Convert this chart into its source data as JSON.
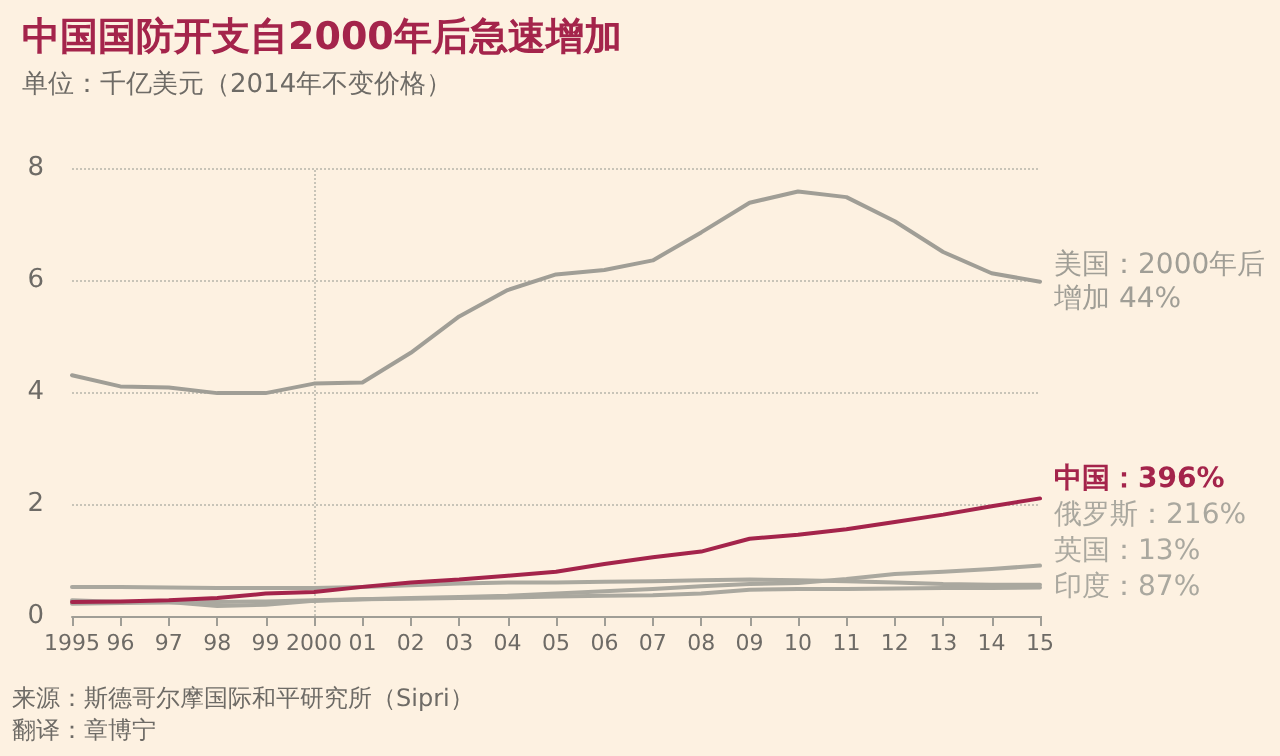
{
  "chart_data": {
    "type": "line",
    "title": "中国国防开支自2000年后急速增加",
    "subtitle": "单位：千亿美元（2014年不变价格）",
    "categories": [
      "1995",
      "96",
      "97",
      "98",
      "99",
      "2000",
      "01",
      "02",
      "03",
      "04",
      "05",
      "06",
      "07",
      "08",
      "09",
      "10",
      "11",
      "12",
      "13",
      "14",
      "15"
    ],
    "series": [
      {
        "name": "美国：2000年后增加 44%",
        "color": "#a09e96",
        "values": [
          4.3,
          4.1,
          4.08,
          3.98,
          3.98,
          4.15,
          4.17,
          4.7,
          5.35,
          5.82,
          6.1,
          6.18,
          6.35,
          6.85,
          7.38,
          7.58,
          7.48,
          7.05,
          6.5,
          6.12,
          5.97
        ]
      },
      {
        "name": "中国：396%",
        "color": "#a4244b",
        "values": [
          0.25,
          0.26,
          0.28,
          0.32,
          0.4,
          0.43,
          0.52,
          0.6,
          0.65,
          0.72,
          0.79,
          0.93,
          1.05,
          1.15,
          1.38,
          1.45,
          1.55,
          1.68,
          1.81,
          1.96,
          2.1
        ]
      },
      {
        "name": "俄罗斯：216%",
        "color": "#aaa89f",
        "values": [
          0.28,
          0.25,
          0.25,
          0.18,
          0.2,
          0.27,
          0.3,
          0.32,
          0.34,
          0.36,
          0.4,
          0.44,
          0.48,
          0.53,
          0.57,
          0.59,
          0.66,
          0.75,
          0.79,
          0.84,
          0.9
        ]
      },
      {
        "name": "英国：13%",
        "color": "#aaa89f",
        "values": [
          0.52,
          0.52,
          0.51,
          0.5,
          0.5,
          0.5,
          0.52,
          0.55,
          0.58,
          0.6,
          0.6,
          0.61,
          0.62,
          0.64,
          0.65,
          0.64,
          0.62,
          0.6,
          0.57,
          0.56,
          0.56
        ]
      },
      {
        "name": "印度：87%",
        "color": "#aaa89f",
        "values": [
          0.22,
          0.23,
          0.24,
          0.25,
          0.26,
          0.28,
          0.3,
          0.31,
          0.32,
          0.33,
          0.35,
          0.36,
          0.37,
          0.4,
          0.47,
          0.48,
          0.48,
          0.49,
          0.5,
          0.5,
          0.51
        ]
      }
    ],
    "ylim": [
      0,
      8
    ],
    "yticks": [
      0,
      2,
      4,
      6,
      8
    ],
    "grid": "y",
    "marker": "none",
    "line_style": "solid",
    "ref_lines": [
      {
        "axis": "x",
        "value": "2000",
        "line_style": "dotted",
        "color": "#c8c4b8"
      }
    ],
    "annotations": [
      "来源：斯德哥尔摩国际和平研究所（Sipri）",
      "翻译：章博宁"
    ]
  }
}
